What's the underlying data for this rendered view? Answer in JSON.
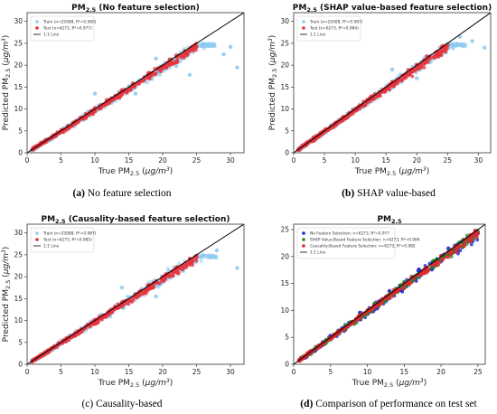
{
  "chart_data": [
    {
      "type": "scatter",
      "title": "PM2.5 (No feature selection)",
      "title_parts": {
        "main": "PM",
        "sub": "2.5",
        "rest": " (No feature selection)"
      },
      "xlabel": "True PM2.5 (μg/m3)",
      "ylabel": "Predicted PM2.5 (μg/m3)",
      "xlim": [
        0,
        32
      ],
      "ylim": [
        0,
        32
      ],
      "xticks": [
        0,
        5,
        10,
        15,
        20,
        25,
        30
      ],
      "yticks": [
        0,
        5,
        10,
        15,
        20,
        25,
        30
      ],
      "legend": [
        "Train (n=25088, R²=0.980)",
        "Test (n=6273, R²=0.977)",
        "1:1 Line"
      ],
      "legend_position": "top-left",
      "series": [
        {
          "name": "Train",
          "color": "#8ecbf0",
          "n": 25088,
          "r2": 0.98,
          "points": [
            [
              1,
              1.2
            ],
            [
              3,
              3.1
            ],
            [
              6,
              5.6
            ],
            [
              9,
              9.4
            ],
            [
              12,
              11.3
            ],
            [
              15,
              15.2
            ],
            [
              18,
              17.5
            ],
            [
              21,
              21.3
            ],
            [
              24,
              23.6
            ],
            [
              29,
              22.5
            ],
            [
              31,
              19.5
            ],
            [
              27.5,
              24.4
            ],
            [
              22,
              19.8
            ],
            [
              16,
              13.5
            ],
            [
              19,
              21.5
            ],
            [
              10,
              13.5
            ],
            [
              24,
              17.8
            ],
            [
              30,
              24.2
            ]
          ]
        },
        {
          "name": "Test",
          "color": "#e8333b",
          "n": 6273,
          "r2": 0.977,
          "points": [
            [
              1,
              1.1
            ],
            [
              2,
              2.2
            ],
            [
              4,
              3.8
            ],
            [
              6,
              6.1
            ],
            [
              8,
              7.8
            ],
            [
              10,
              10.2
            ],
            [
              12,
              11.7
            ],
            [
              14,
              14.3
            ],
            [
              16,
              15.6
            ],
            [
              18,
              18.2
            ],
            [
              20,
              19.7
            ],
            [
              22,
              22.1
            ],
            [
              24,
              23.5
            ],
            [
              25,
              24.2
            ]
          ]
        },
        {
          "name": "1:1 Line",
          "color": "#000000",
          "points": [
            [
              0,
              0
            ],
            [
              32,
              32
            ]
          ]
        }
      ],
      "grid": false
    },
    {
      "type": "scatter",
      "title": "PM2.5 (SHAP value-based feature selection)",
      "title_parts": {
        "main": "PM",
        "sub": "2.5",
        "rest": " (SHAP value-based feature selection)"
      },
      "xlabel": "True PM2.5 (μg/m3)",
      "ylabel": "Predicted PM2.5 (μg/m3)",
      "xlim": [
        0,
        32
      ],
      "ylim": [
        0,
        32
      ],
      "xticks": [
        0,
        5,
        10,
        15,
        20,
        25,
        30
      ],
      "yticks": [
        0,
        5,
        10,
        15,
        20,
        25,
        30
      ],
      "legend": [
        "Train (n=25088, R²=0.987)",
        "Test (n=6273, R²=0.984)",
        "1:1 Line"
      ],
      "legend_position": "top-left",
      "series": [
        {
          "name": "Train",
          "color": "#8ecbf0",
          "n": 25088,
          "r2": 0.987,
          "points": [
            [
              1,
              1.1
            ],
            [
              3,
              3.0
            ],
            [
              6,
              5.8
            ],
            [
              9,
              9.2
            ],
            [
              12,
              11.6
            ],
            [
              15,
              14.8
            ],
            [
              18,
              17.9
            ],
            [
              21,
              21.0
            ],
            [
              24,
              23.9
            ],
            [
              29,
              25.5
            ],
            [
              31,
              24.0
            ],
            [
              27,
              26.5
            ],
            [
              20,
              17.0
            ],
            [
              16,
              19.0
            ]
          ]
        },
        {
          "name": "Test",
          "color": "#e8333b",
          "n": 6273,
          "r2": 0.984,
          "points": [
            [
              1,
              1.0
            ],
            [
              2,
              2.1
            ],
            [
              4,
              4.0
            ],
            [
              6,
              5.9
            ],
            [
              8,
              8.1
            ],
            [
              10,
              9.9
            ],
            [
              12,
              12.1
            ],
            [
              14,
              13.9
            ],
            [
              16,
              16.2
            ],
            [
              18,
              17.8
            ],
            [
              20,
              20.1
            ],
            [
              22,
              21.9
            ],
            [
              24,
              24.0
            ],
            [
              25,
              24.6
            ]
          ]
        },
        {
          "name": "1:1 Line",
          "color": "#000000",
          "points": [
            [
              0,
              0
            ],
            [
              32,
              32
            ]
          ]
        }
      ],
      "grid": false
    },
    {
      "type": "scatter",
      "title": "PM2.5 (Causality-based feature selection)",
      "title_parts": {
        "main": "PM",
        "sub": "2.5",
        "rest": " (Causality-based feature selection)"
      },
      "xlabel": "True PM2.5 (μg/m3)",
      "ylabel": "Predicted PM2.5 (μg/m3)",
      "xlim": [
        0,
        32
      ],
      "ylim": [
        0,
        32
      ],
      "xticks": [
        0,
        5,
        10,
        15,
        20,
        25,
        30
      ],
      "yticks": [
        0,
        5,
        10,
        15,
        20,
        25,
        30
      ],
      "legend": [
        "Train (n=25088, R²=0.987)",
        "Test (n=6273, R²=0.985)",
        "1:1 Line"
      ],
      "legend_position": "top-left",
      "series": [
        {
          "name": "Train",
          "color": "#8ecbf0",
          "n": 25088,
          "r2": 0.987,
          "points": [
            [
              1,
              1.1
            ],
            [
              3,
              3.0
            ],
            [
              6,
              5.9
            ],
            [
              9,
              9.1
            ],
            [
              12,
              11.8
            ],
            [
              15,
              15.0
            ],
            [
              18,
              18.2
            ],
            [
              21,
              21.1
            ],
            [
              24,
              24.0
            ],
            [
              31,
              22.0
            ],
            [
              28,
              26.0
            ],
            [
              19,
              15.5
            ],
            [
              14,
              17.5
            ]
          ]
        },
        {
          "name": "Test",
          "color": "#e8333b",
          "n": 6273,
          "r2": 0.985,
          "points": [
            [
              1,
              1.0
            ],
            [
              2,
              2.0
            ],
            [
              4,
              4.1
            ],
            [
              6,
              6.0
            ],
            [
              8,
              8.0
            ],
            [
              10,
              10.1
            ],
            [
              12,
              11.9
            ],
            [
              14,
              14.1
            ],
            [
              16,
              16.0
            ],
            [
              18,
              18.1
            ],
            [
              20,
              19.9
            ],
            [
              22,
              22.0
            ],
            [
              24,
              24.1
            ],
            [
              25,
              24.7
            ]
          ]
        },
        {
          "name": "1:1 Line",
          "color": "#000000",
          "points": [
            [
              0,
              0
            ],
            [
              32,
              32
            ]
          ]
        }
      ],
      "grid": false
    },
    {
      "type": "scatter",
      "title": "PM2.5",
      "title_parts": {
        "main": "PM",
        "sub": "2.5",
        "rest": ""
      },
      "xlabel": "True PM2.5 (μg/m3)",
      "ylabel": "",
      "xlim": [
        0,
        26
      ],
      "ylim": [
        0,
        26
      ],
      "xticks": [
        0,
        5,
        10,
        15,
        20,
        25
      ],
      "yticks": [
        0,
        5,
        10,
        15,
        20,
        25
      ],
      "legend": [
        "No Feature Selection: n=6273, R²=0.977",
        "SHAP Value-Based Feature Selection: n=6273, R²=0.984",
        "Causality-Based Feature Selection: n=6273, R²=0.985",
        "1:1 Line"
      ],
      "legend_position": "top-left",
      "series": [
        {
          "name": "No Feature Selection",
          "color": "#1a22d6",
          "n": 6273,
          "r2": 0.977,
          "points": [
            [
              1,
              1.2
            ],
            [
              3,
              2.7
            ],
            [
              5,
              5.3
            ],
            [
              7,
              6.4
            ],
            [
              9,
              9.6
            ],
            [
              11,
              10.2
            ],
            [
              13,
              13.6
            ],
            [
              15,
              14.2
            ],
            [
              17,
              17.6
            ],
            [
              19,
              18.2
            ],
            [
              21,
              21.5
            ],
            [
              23,
              22.4
            ],
            [
              24,
              23.2
            ],
            [
              25,
              24.3
            ]
          ]
        },
        {
          "name": "SHAP Value-Based Feature Selection",
          "color": "#1f8a2b",
          "n": 6273,
          "r2": 0.984,
          "points": [
            [
              1,
              1.1
            ],
            [
              3,
              3.2
            ],
            [
              5,
              4.9
            ],
            [
              7,
              7.3
            ],
            [
              9,
              8.8
            ],
            [
              11,
              11.3
            ],
            [
              13,
              12.7
            ],
            [
              15,
              15.3
            ],
            [
              17,
              16.8
            ],
            [
              19,
              19.2
            ],
            [
              21,
              20.8
            ],
            [
              23,
              23.1
            ],
            [
              25,
              24.6
            ]
          ]
        },
        {
          "name": "Causality-Based Feature Selection",
          "color": "#e3262d",
          "n": 6273,
          "r2": 0.985,
          "points": [
            [
              1,
              1.0
            ],
            [
              2,
              2.1
            ],
            [
              4,
              4.0
            ],
            [
              6,
              6.1
            ],
            [
              8,
              7.9
            ],
            [
              10,
              10.0
            ],
            [
              12,
              12.1
            ],
            [
              14,
              13.9
            ],
            [
              16,
              16.1
            ],
            [
              18,
              17.9
            ],
            [
              20,
              20.1
            ],
            [
              22,
              21.9
            ],
            [
              24,
              24.0
            ],
            [
              25,
              24.4
            ]
          ]
        },
        {
          "name": "1:1 Line",
          "color": "#000000",
          "points": [
            [
              0,
              0
            ],
            [
              26,
              26
            ]
          ]
        }
      ],
      "grid": false
    }
  ],
  "captions": [
    {
      "label": "(a)",
      "text": " No feature selection"
    },
    {
      "label": "(b)",
      "text": " SHAP value-based"
    },
    {
      "label": "",
      "text": "(c) Causality-based"
    },
    {
      "label": "(d)",
      "text": " Comparison of performance on test set"
    }
  ]
}
